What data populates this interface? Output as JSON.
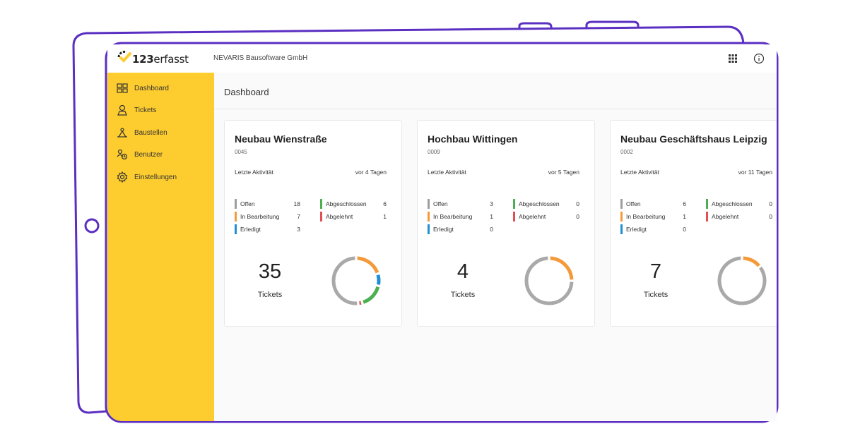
{
  "app": {
    "logo_text_bold": "123",
    "logo_text": "erfasst",
    "company": "NEVARIS Bausoftware GmbH"
  },
  "colors": {
    "sidebar": "#fdcc2f",
    "frame": "#5a2fc2",
    "offen": "#9e9e9e",
    "in_bearbeitung": "#f59a3a",
    "erledigt": "#1f8fd6",
    "abgeschlossen": "#4caf50",
    "abgelehnt": "#e05050",
    "ring": "#a9a9a9"
  },
  "topbar": {
    "grid_icon": "apps-grid-icon",
    "info_icon": "info-circle-icon"
  },
  "sidebar": {
    "items": [
      {
        "label": "Dashboard",
        "icon": "dashboard-icon"
      },
      {
        "label": "Tickets",
        "icon": "tickets-icon"
      },
      {
        "label": "Baustellen",
        "icon": "construction-site-icon"
      },
      {
        "label": "Benutzer",
        "icon": "users-icon"
      },
      {
        "label": "Einstellungen",
        "icon": "gear-icon"
      }
    ]
  },
  "main": {
    "title": "Dashboard",
    "status_labels": {
      "offen": "Offen",
      "in_bearbeitung": "In Bearbeitung",
      "erledigt": "Erledigt",
      "abgeschlossen": "Abgeschlossen",
      "abgelehnt": "Abgelehnt"
    },
    "activity_label": "Letzte Aktivität",
    "tickets_label": "Tickets",
    "projects": [
      {
        "name": "Neubau Wienstraße",
        "id": "0045",
        "last_activity": "vor 4 Tagen",
        "offen": "18",
        "in_bearbeitung": "7",
        "erledigt": "3",
        "abgeschlossen": "6",
        "abgelehnt": "1",
        "total": "35"
      },
      {
        "name": "Hochbau Wittingen",
        "id": "0009",
        "last_activity": "vor 5 Tagen",
        "offen": "3",
        "in_bearbeitung": "1",
        "erledigt": "0",
        "abgeschlossen": "0",
        "abgelehnt": "0",
        "total": "4"
      },
      {
        "name": "Neubau Geschäftshaus Leipzig",
        "id": "0002",
        "last_activity": "vor 11 Tagen",
        "offen": "6",
        "in_bearbeitung": "1",
        "erledigt": "0",
        "abgeschlossen": "0",
        "abgelehnt": "0",
        "total": "7"
      }
    ]
  }
}
